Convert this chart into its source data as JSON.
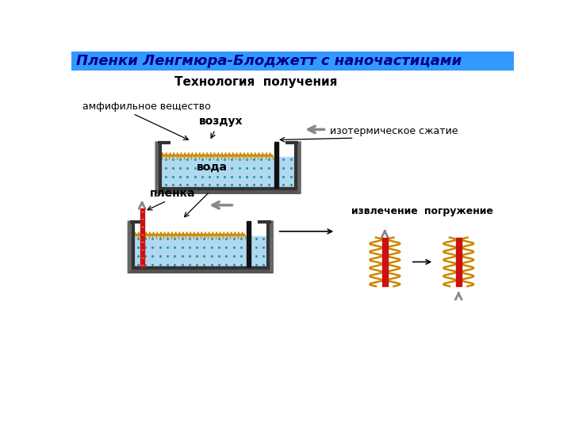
{
  "title_header": "Пленки Ленгмюра-Блоджетт с наночастицами",
  "subtitle": "Технология  получения",
  "header_bg": "#3399ff",
  "header_text_color": "#00008B",
  "water_color": "#b0d8f0",
  "dots_color": "#2699a0",
  "trough_line_color": "#333333",
  "amphiphile_color": "#cc8800",
  "red_bar_color": "#cc1111",
  "orange_wave_color": "#cc8800",
  "label_vozdukh": "воздух",
  "label_voda": "вода",
  "label_amphiphile": "амфифильное вещество",
  "label_isoterm": "изотермическое сжатие",
  "label_plenka": "пленка",
  "label_izvlechenie": "извлечение",
  "label_pogruzhenie": "погружение",
  "arrow_color": "#888888",
  "bg_color": "#ffffff"
}
